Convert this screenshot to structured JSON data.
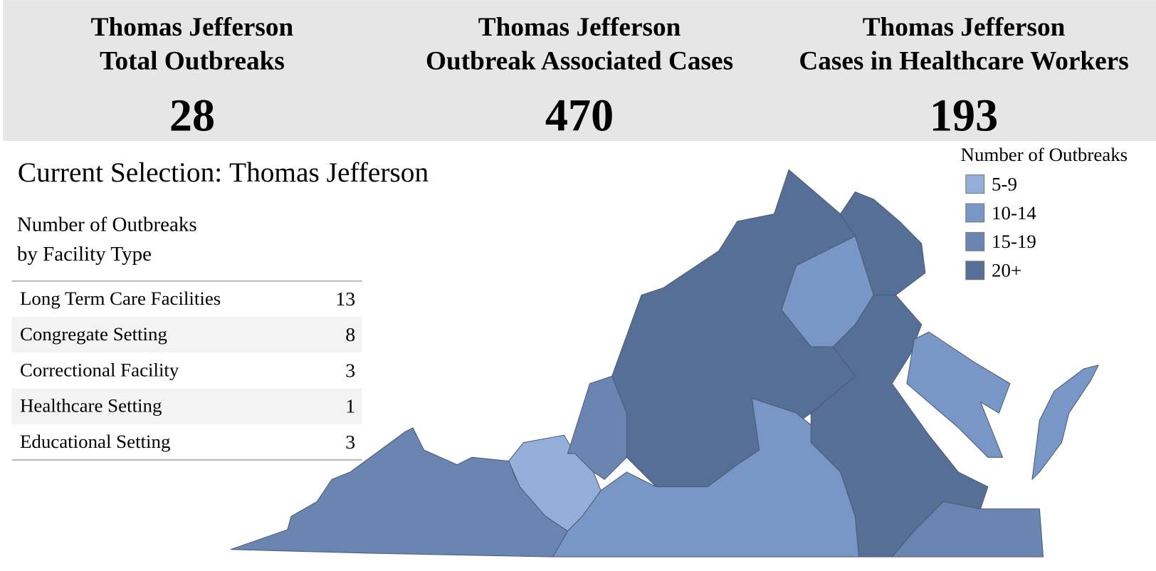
{
  "header": {
    "kpis": [
      {
        "title_lines": [
          "Thomas Jefferson",
          "Total Outbreaks"
        ],
        "value": 28
      },
      {
        "title_lines": [
          "Thomas Jefferson",
          "Outbreak Associated Cases"
        ],
        "value": 470
      },
      {
        "title_lines": [
          "Thomas Jefferson",
          "Cases in Healthcare Workers"
        ],
        "value": 193
      }
    ]
  },
  "selection": {
    "label": "Current Selection:",
    "value": "Thomas Jefferson"
  },
  "table": {
    "title_lines": [
      "Number of Outbreaks",
      "by Facility Type"
    ],
    "rows": [
      [
        "Long Term Care Facilities",
        13
      ],
      [
        "Congregate Setting",
        8
      ],
      [
        "Correctional Facility",
        3
      ],
      [
        "Healthcare Setting",
        1
      ],
      [
        "Educational Setting",
        3
      ]
    ]
  },
  "legend": {
    "title": "Number of Outbreaks",
    "items": [
      {
        "label": "5-9",
        "color": "#93afd9"
      },
      {
        "label": "10-14",
        "color": "#7997c6"
      },
      {
        "label": "15-19",
        "color": "#6a85b1"
      },
      {
        "label": "20+",
        "color": "#566f96"
      }
    ]
  }
}
